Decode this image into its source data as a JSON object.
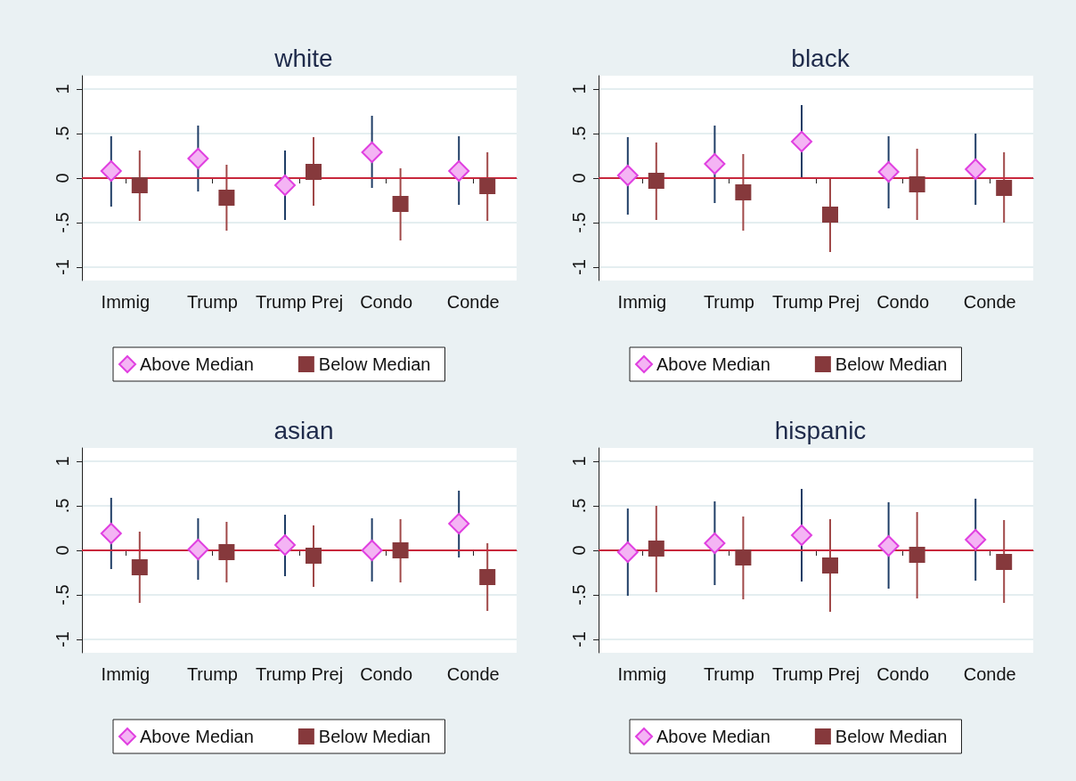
{
  "chart_data": [
    {
      "type": "scatter",
      "title": "white",
      "categories": [
        "Immig",
        "Trump",
        "Trump Prej",
        "Condo",
        "Conde"
      ],
      "ylim": [
        -1.15,
        1.15
      ],
      "yticks": [
        {
          "value": -1,
          "label": "-1"
        },
        {
          "value": -0.5,
          "label": "-.5"
        },
        {
          "value": 0,
          "label": "0"
        },
        {
          "value": 0.5,
          "label": ".5"
        },
        {
          "value": 1,
          "label": "1"
        }
      ],
      "grid": "y",
      "legend": "bottom",
      "ref_lines": [
        {
          "axis": "y",
          "value": 0,
          "label": null,
          "color": "#c8283c"
        }
      ],
      "series": [
        {
          "name": "Above Median",
          "color": "#f4b4f4",
          "marker": "diamond",
          "values": [
            0.08,
            0.22,
            -0.08,
            0.29,
            0.08
          ],
          "errors": [
            [
              -0.32,
              0.47
            ],
            [
              -0.15,
              0.59
            ],
            [
              -0.47,
              0.31
            ],
            [
              -0.11,
              0.7
            ],
            [
              -0.3,
              0.47
            ]
          ]
        },
        {
          "name": "Below Median",
          "color": "#86393c",
          "marker": "square",
          "values": [
            -0.08,
            -0.22,
            0.07,
            -0.29,
            -0.09
          ],
          "errors": [
            [
              -0.48,
              0.31
            ],
            [
              -0.59,
              0.15
            ],
            [
              -0.31,
              0.46
            ],
            [
              -0.7,
              0.11
            ],
            [
              -0.48,
              0.29
            ]
          ]
        }
      ]
    },
    {
      "type": "scatter",
      "title": "black",
      "categories": [
        "Immig",
        "Trump",
        "Trump Prej",
        "Condo",
        "Conde"
      ],
      "ylim": [
        -1.15,
        1.15
      ],
      "yticks": [
        {
          "value": -1,
          "label": "-1"
        },
        {
          "value": -0.5,
          "label": "-.5"
        },
        {
          "value": 0,
          "label": "0"
        },
        {
          "value": 0.5,
          "label": ".5"
        },
        {
          "value": 1,
          "label": "1"
        }
      ],
      "grid": "y",
      "legend": "bottom",
      "ref_lines": [
        {
          "axis": "y",
          "value": 0,
          "label": null,
          "color": "#c8283c"
        }
      ],
      "series": [
        {
          "name": "Above Median",
          "color": "#f4b4f4",
          "marker": "diamond",
          "values": [
            0.03,
            0.16,
            0.41,
            0.07,
            0.1
          ],
          "errors": [
            [
              -0.41,
              0.46
            ],
            [
              -0.28,
              0.59
            ],
            [
              0,
              0.82
            ],
            [
              -0.34,
              0.47
            ],
            [
              -0.3,
              0.5
            ]
          ]
        },
        {
          "name": "Below Median",
          "color": "#86393c",
          "marker": "square",
          "values": [
            -0.03,
            -0.16,
            -0.41,
            -0.07,
            -0.11
          ],
          "errors": [
            [
              -0.47,
              0.4
            ],
            [
              -0.59,
              0.27
            ],
            [
              -0.83,
              0
            ],
            [
              -0.47,
              0.33
            ],
            [
              -0.5,
              0.29
            ]
          ]
        }
      ]
    },
    {
      "type": "scatter",
      "title": "asian",
      "categories": [
        "Immig",
        "Trump",
        "Trump Prej",
        "Condo",
        "Conde"
      ],
      "ylim": [
        -1.15,
        1.15
      ],
      "yticks": [
        {
          "value": -1,
          "label": "-1"
        },
        {
          "value": -0.5,
          "label": "-.5"
        },
        {
          "value": 0,
          "label": "0"
        },
        {
          "value": 0.5,
          "label": ".5"
        },
        {
          "value": 1,
          "label": "1"
        }
      ],
      "grid": "y",
      "legend": "bottom",
      "ref_lines": [
        {
          "axis": "y",
          "value": 0,
          "label": null,
          "color": "#c8283c"
        }
      ],
      "series": [
        {
          "name": "Above Median",
          "color": "#f4b4f4",
          "marker": "diamond",
          "values": [
            0.19,
            0.01,
            0.06,
            0,
            0.3
          ],
          "errors": [
            [
              -0.21,
              0.59
            ],
            [
              -0.33,
              0.36
            ],
            [
              -0.29,
              0.4
            ],
            [
              -0.35,
              0.36
            ],
            [
              -0.08,
              0.67
            ]
          ]
        },
        {
          "name": "Below Median",
          "color": "#86393c",
          "marker": "square",
          "values": [
            -0.19,
            -0.02,
            -0.06,
            0,
            -0.3
          ],
          "errors": [
            [
              -0.59,
              0.21
            ],
            [
              -0.36,
              0.32
            ],
            [
              -0.41,
              0.28
            ],
            [
              -0.36,
              0.35
            ],
            [
              -0.68,
              0.08
            ]
          ]
        }
      ]
    },
    {
      "type": "scatter",
      "title": "hispanic",
      "categories": [
        "Immig",
        "Trump",
        "Trump Prej",
        "Condo",
        "Conde"
      ],
      "ylim": [
        -1.15,
        1.15
      ],
      "yticks": [
        {
          "value": -1,
          "label": "-1"
        },
        {
          "value": -0.5,
          "label": "-.5"
        },
        {
          "value": 0,
          "label": "0"
        },
        {
          "value": 0.5,
          "label": ".5"
        },
        {
          "value": 1,
          "label": "1"
        }
      ],
      "grid": "y",
      "legend": "bottom",
      "ref_lines": [
        {
          "axis": "y",
          "value": 0,
          "label": null,
          "color": "#c8283c"
        }
      ],
      "series": [
        {
          "name": "Above Median",
          "color": "#f4b4f4",
          "marker": "diamond",
          "values": [
            -0.02,
            0.08,
            0.17,
            0.05,
            0.12
          ],
          "errors": [
            [
              -0.51,
              0.47
            ],
            [
              -0.39,
              0.55
            ],
            [
              -0.35,
              0.69
            ],
            [
              -0.43,
              0.54
            ],
            [
              -0.34,
              0.58
            ]
          ]
        },
        {
          "name": "Below Median",
          "color": "#86393c",
          "marker": "square",
          "values": [
            0.02,
            -0.08,
            -0.17,
            -0.05,
            -0.13
          ],
          "errors": [
            [
              -0.47,
              0.5
            ],
            [
              -0.55,
              0.38
            ],
            [
              -0.69,
              0.35
            ],
            [
              -0.54,
              0.43
            ],
            [
              -0.59,
              0.34
            ]
          ]
        }
      ]
    }
  ]
}
